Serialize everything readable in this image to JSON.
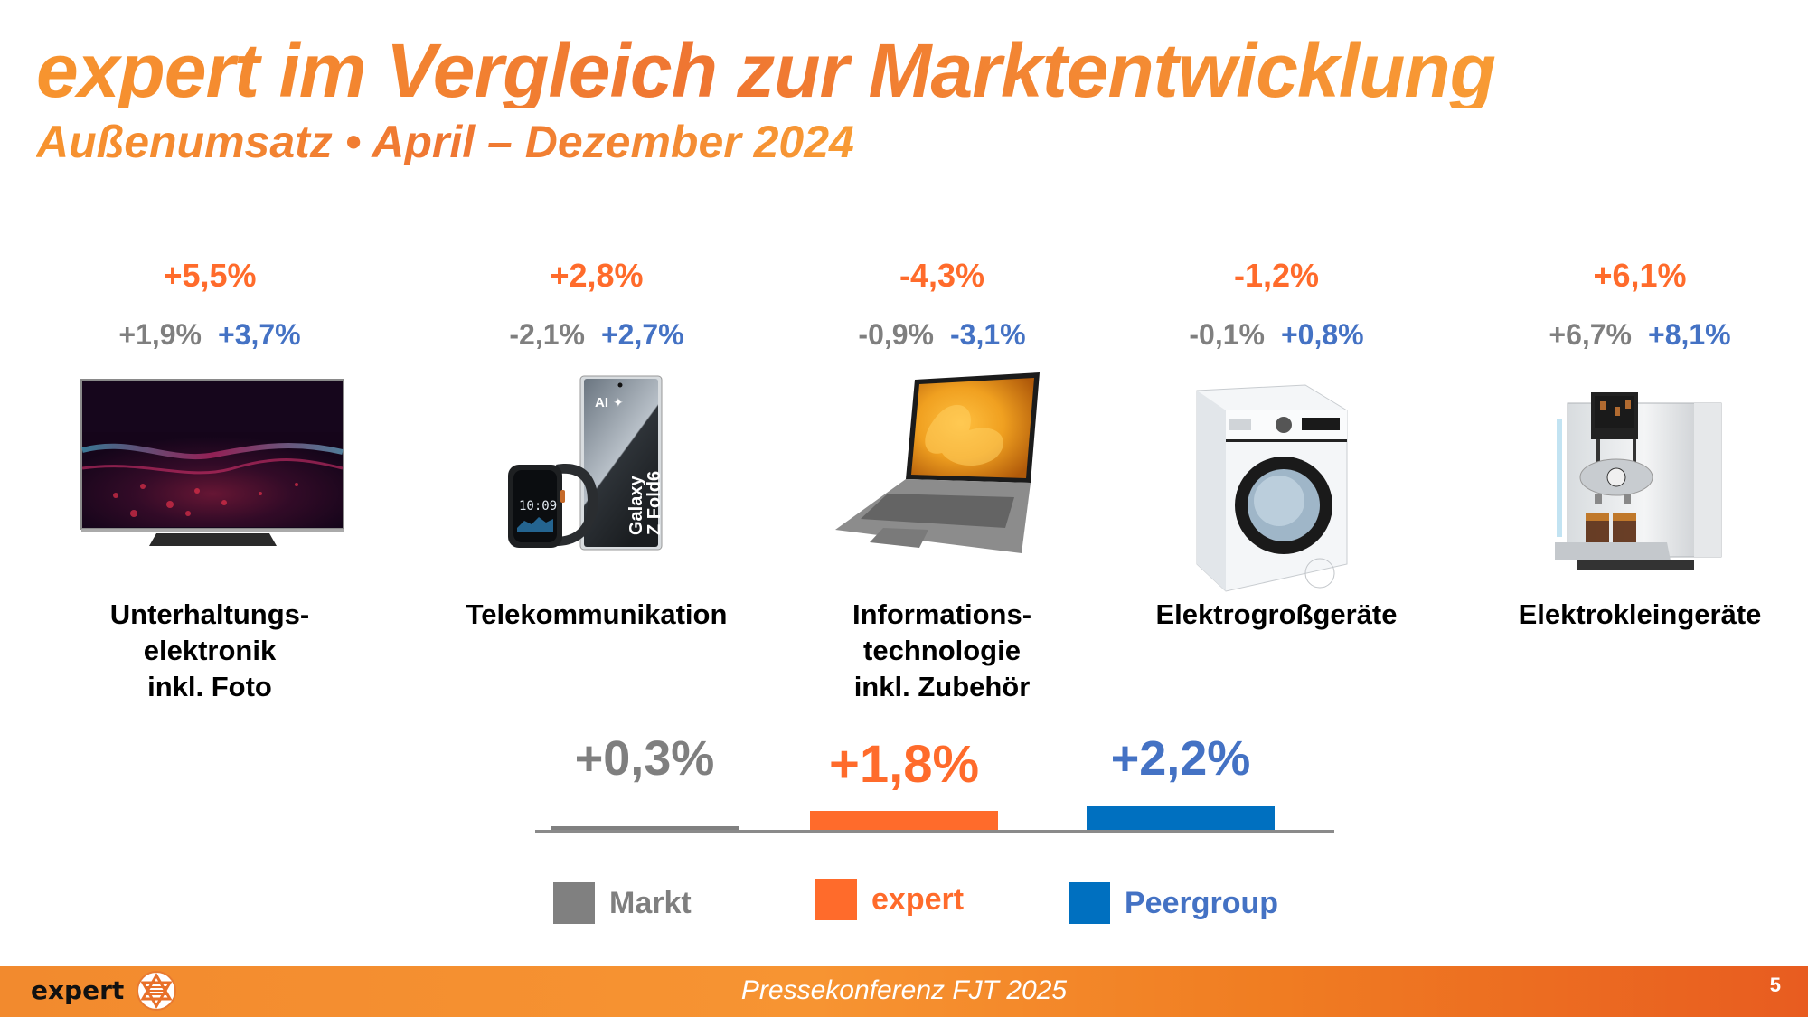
{
  "slide": {
    "title": "expert im Vergleich zur Marktentwicklung",
    "subtitle": "Außenumsatz • April – Dezember 2024"
  },
  "colors": {
    "expert": "#ff6b2b",
    "markt": "#7f7f7f",
    "peergroup_text": "#4472c4",
    "peergroup_bar": "#0070c0",
    "markt_bar": "#808080",
    "expert_bar": "#ff6b2b"
  },
  "categories": [
    {
      "expert": "+5,5%",
      "markt": "+1,9%",
      "peergroup": "+3,7%",
      "label_lines": [
        "Unterhaltungs-",
        "elektronik",
        "inkl. Foto"
      ],
      "image": "tv-image"
    },
    {
      "expert": "+2,8%",
      "markt": "-2,1%",
      "peergroup": "+2,7%",
      "label_lines": [
        "Telekommunikation"
      ],
      "image": "phone-watch-image"
    },
    {
      "expert": "-4,3%",
      "markt": "-0,9%",
      "peergroup": "-3,1%",
      "label_lines": [
        "Informations-",
        "technologie",
        "inkl. Zubehör"
      ],
      "image": "laptop-image"
    },
    {
      "expert": "-1,2%",
      "markt": "-0,1%",
      "peergroup": "+0,8%",
      "label_lines": [
        "Elektrogroßgeräte"
      ],
      "image": "washing-machine-image"
    },
    {
      "expert": "+6,1%",
      "markt": "+6,7%",
      "peergroup": "+8,1%",
      "label_lines": [
        "Elektrokleingeräte"
      ],
      "image": "coffee-machine-image"
    }
  ],
  "products": {
    "phone_text_ai": "AI",
    "phone_brand_1": "Galaxy",
    "phone_brand_2": "Z Fold6",
    "watch_time": "10:09"
  },
  "chart_data": {
    "type": "bar",
    "title": "",
    "categories": [
      "Markt",
      "expert",
      "Peergroup"
    ],
    "values": [
      0.3,
      1.8,
      2.2
    ],
    "value_labels": [
      "+0,3%",
      "+1,8%",
      "+2,2%"
    ],
    "colors": [
      "#808080",
      "#ff6b2b",
      "#0070c0"
    ],
    "label_colors": [
      "#7f7f7f",
      "#ff6b2b",
      "#4472c4"
    ],
    "xlabel": "",
    "ylabel": "",
    "ylim": [
      0,
      2.2
    ],
    "grid": false,
    "axis_ticks": false,
    "legend": {
      "placement": "bottom",
      "entries": [
        "Markt",
        "expert",
        "Peergroup"
      ]
    }
  },
  "footer": {
    "logo_text": "expert",
    "center_text": "Pressekonferenz FJT 2025",
    "page_number": "5"
  }
}
